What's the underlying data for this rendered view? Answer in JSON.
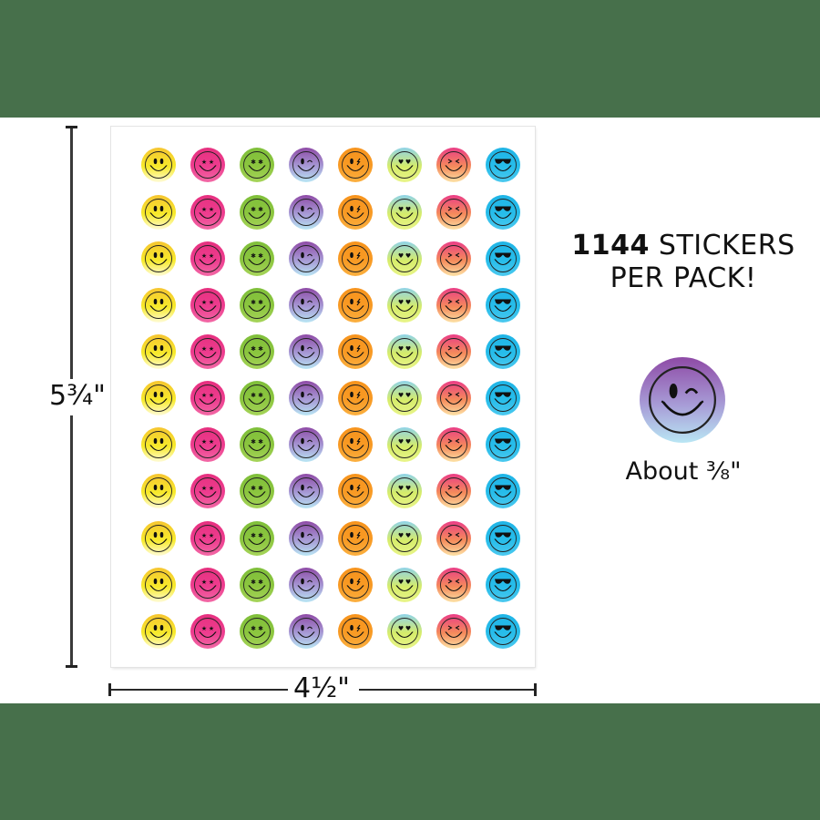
{
  "colors": {
    "band_green": "#47704b",
    "background": "#ffffff",
    "text": "#111111"
  },
  "headline": {
    "count": "1144",
    "line1_rest": " STICKERS",
    "line2": "PER PACK!"
  },
  "sample": {
    "design": "wink",
    "size_label": "About ³⁄₈\""
  },
  "dimensions": {
    "height_label": "5¾\"",
    "width_label": "4½\""
  },
  "sheet": {
    "rows": 11,
    "columns": [
      {
        "design": "smile",
        "top": "#f6c531",
        "mid": "#f7ea2a",
        "bottom": "#fffbd8"
      },
      {
        "design": "star-eyes",
        "top": "#e6307f",
        "mid": "#ee3d8f",
        "bottom": "#f26aa6"
      },
      {
        "design": "flower-eyes",
        "top": "#7fbf3a",
        "mid": "#8cc63f",
        "bottom": "#a6d45a"
      },
      {
        "design": "wink",
        "top": "#8e4aa6",
        "mid": "#a79bd6",
        "bottom": "#b9e6f4"
      },
      {
        "design": "lightning-eye",
        "top": "#f7941d",
        "mid": "#f89a24",
        "bottom": "#fbb040"
      },
      {
        "design": "heart-eyes",
        "top": "#8fd3e8",
        "mid": "#d6ec6a",
        "bottom": "#e9f58a"
      },
      {
        "design": "squint",
        "top": "#ea3d86",
        "mid": "#f58b5b",
        "bottom": "#fde2a6"
      },
      {
        "design": "sunglasses",
        "top": "#1fb4e6",
        "mid": "#27bdea",
        "bottom": "#4cc9ef"
      }
    ]
  }
}
